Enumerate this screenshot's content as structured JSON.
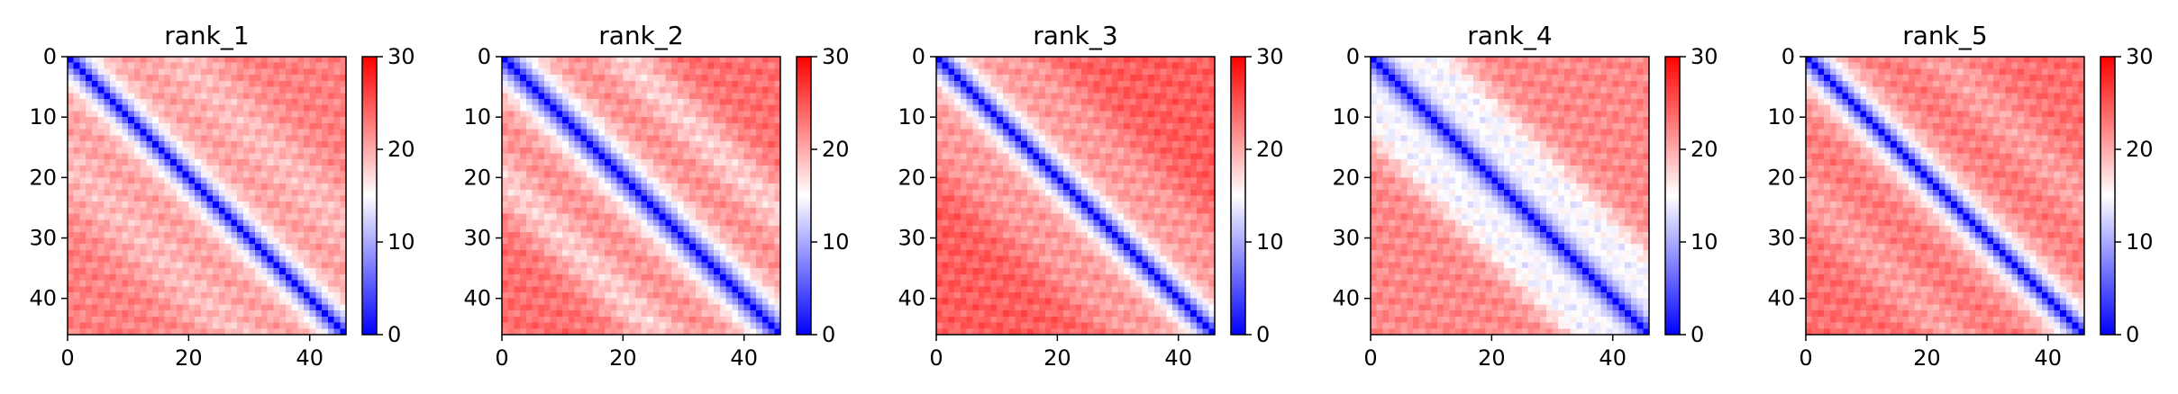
{
  "figure": {
    "background": "#ffffff"
  },
  "chart_data": [
    {
      "type": "heatmap",
      "title": "rank_1",
      "grid_size": 46,
      "xticks": [
        0,
        20,
        40
      ],
      "yticks": [
        0,
        10,
        20,
        30,
        40
      ],
      "xlim": [
        0,
        46
      ],
      "ylim": [
        46,
        0
      ],
      "colorbar": {
        "min": 0,
        "max": 30,
        "ticks": [
          0,
          10,
          20,
          30
        ],
        "colormap": "bwr"
      },
      "pattern": {
        "diag_width": 3.3,
        "far_level": 22.5,
        "bumps": [
          {
            "offset": 18,
            "sigma": 5,
            "amp": -3.5
          }
        ]
      }
    },
    {
      "type": "heatmap",
      "title": "rank_2",
      "grid_size": 46,
      "xticks": [
        0,
        20,
        40
      ],
      "yticks": [
        0,
        10,
        20,
        30,
        40
      ],
      "xlim": [
        0,
        46
      ],
      "ylim": [
        46,
        0
      ],
      "colorbar": {
        "min": 0,
        "max": 30,
        "ticks": [
          0,
          10,
          20,
          30
        ],
        "colormap": "bwr"
      },
      "pattern": {
        "diag_width": 4.2,
        "far_level": 23.5,
        "bumps": [
          {
            "offset": 20,
            "sigma": 4,
            "amp": -5.5
          }
        ]
      }
    },
    {
      "type": "heatmap",
      "title": "rank_3",
      "grid_size": 46,
      "xticks": [
        0,
        20,
        40
      ],
      "yticks": [
        0,
        10,
        20,
        30,
        40
      ],
      "xlim": [
        0,
        46
      ],
      "ylim": [
        46,
        0
      ],
      "colorbar": {
        "min": 0,
        "max": 30,
        "ticks": [
          0,
          10,
          20,
          30
        ],
        "colormap": "bwr"
      },
      "pattern": {
        "diag_width": 3.8,
        "far_level": 24.5,
        "bumps": [
          {
            "offset": 14,
            "sigma": 4,
            "amp": -3.0
          }
        ]
      }
    },
    {
      "type": "heatmap",
      "title": "rank_4",
      "grid_size": 46,
      "xticks": [
        0,
        20,
        40
      ],
      "yticks": [
        0,
        10,
        20,
        30,
        40
      ],
      "xlim": [
        0,
        46
      ],
      "ylim": [
        46,
        0
      ],
      "colorbar": {
        "min": 0,
        "max": 30,
        "ticks": [
          0,
          10,
          20,
          30
        ],
        "colormap": "bwr"
      },
      "pattern": {
        "diag_width": 3.6,
        "far_level": 22.0,
        "bumps": [
          {
            "offset": 10,
            "sigma": 3.5,
            "amp": -6.0
          }
        ]
      }
    },
    {
      "type": "heatmap",
      "title": "rank_5",
      "grid_size": 46,
      "xticks": [
        0,
        20,
        40
      ],
      "yticks": [
        0,
        10,
        20,
        30,
        40
      ],
      "xlim": [
        0,
        46
      ],
      "ylim": [
        46,
        0
      ],
      "colorbar": {
        "min": 0,
        "max": 30,
        "ticks": [
          0,
          10,
          20,
          30
        ],
        "colormap": "bwr"
      },
      "pattern": {
        "diag_width": 3.5,
        "far_level": 23.5,
        "bumps": [
          {
            "offset": 22,
            "sigma": 4,
            "amp": -3.0
          }
        ]
      }
    }
  ]
}
